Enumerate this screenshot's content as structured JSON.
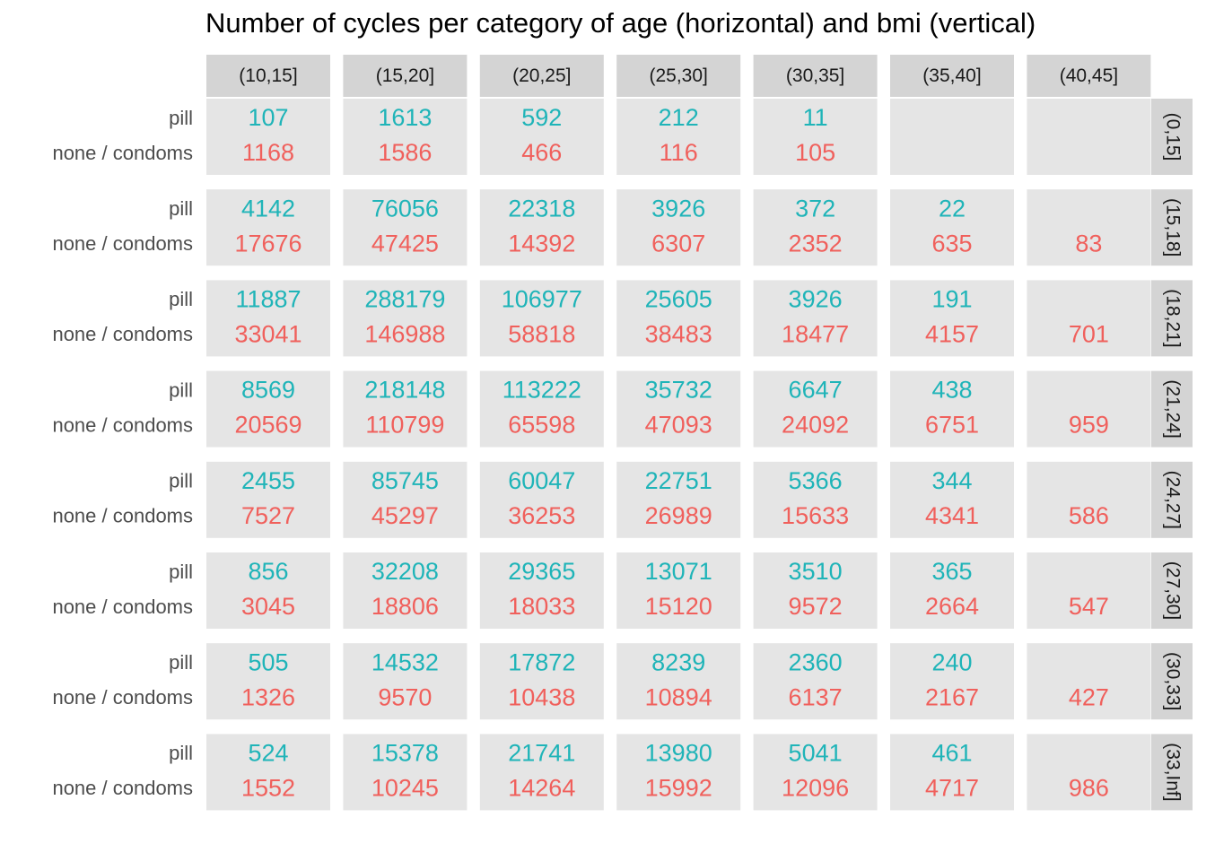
{
  "chart_data": {
    "type": "table",
    "title": "Number of cycles per category of age (horizontal) and bmi (vertical)",
    "columns": [
      "(10,15]",
      "(15,20]",
      "(20,25]",
      "(25,30]",
      "(30,35]",
      "(35,40]",
      "(40,45]"
    ],
    "rows": [
      "(0,15]",
      "(15,18]",
      "(18,21]",
      "(21,24]",
      "(24,27]",
      "(27,30]",
      "(30,33]",
      "(33,Inf]"
    ],
    "series": [
      {
        "name": "pill",
        "color": "#1fb4b8",
        "values": [
          [
            107,
            1613,
            592,
            212,
            11,
            null,
            null
          ],
          [
            4142,
            76056,
            22318,
            3926,
            372,
            22,
            null
          ],
          [
            11887,
            288179,
            106977,
            25605,
            3926,
            191,
            null
          ],
          [
            8569,
            218148,
            113222,
            35732,
            6647,
            438,
            null
          ],
          [
            2455,
            85745,
            60047,
            22751,
            5366,
            344,
            null
          ],
          [
            856,
            32208,
            29365,
            13071,
            3510,
            365,
            null
          ],
          [
            505,
            14532,
            17872,
            8239,
            2360,
            240,
            null
          ],
          [
            524,
            15378,
            21741,
            13980,
            5041,
            461,
            null
          ]
        ]
      },
      {
        "name": "none / condoms",
        "color": "#f0605c",
        "values": [
          [
            1168,
            1586,
            466,
            116,
            105,
            null,
            null
          ],
          [
            17676,
            47425,
            14392,
            6307,
            2352,
            635,
            83
          ],
          [
            33041,
            146988,
            58818,
            38483,
            18477,
            4157,
            701
          ],
          [
            20569,
            110799,
            65598,
            47093,
            24092,
            6751,
            959
          ],
          [
            7527,
            45297,
            36253,
            26989,
            15633,
            4341,
            586
          ],
          [
            3045,
            18806,
            18033,
            15120,
            9572,
            2664,
            547
          ],
          [
            1326,
            9570,
            10438,
            10894,
            6137,
            2167,
            427
          ],
          [
            1552,
            10245,
            14264,
            15992,
            12096,
            4717,
            986
          ]
        ]
      }
    ],
    "panel_color": "#e5e5e5",
    "strip_color": "#d4d4d4"
  }
}
